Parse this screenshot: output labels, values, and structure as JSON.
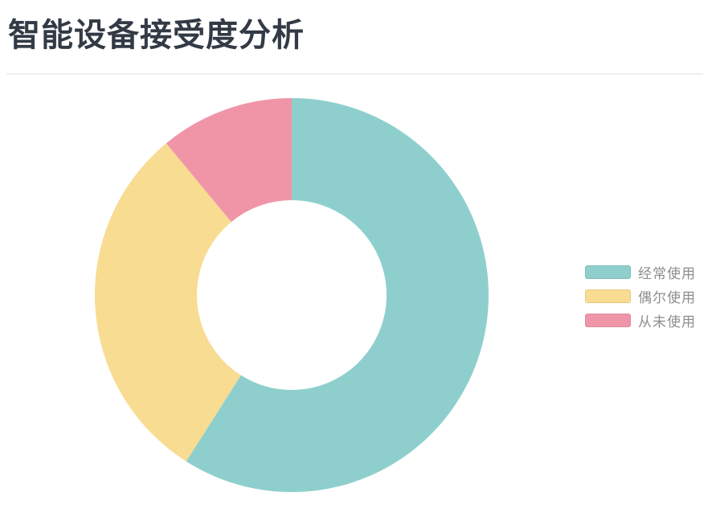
{
  "page": {
    "title": "智能设备接受度分析",
    "title_color": "#323a45",
    "background": "#ffffff",
    "divider_color": "#efefef"
  },
  "chart_data": {
    "type": "pie",
    "subtype": "donut",
    "title": "智能设备接受度分析",
    "unit": "percent",
    "direction": "clockwise",
    "start_angle_deg": 0,
    "inner_radius_ratio": 0.48,
    "legend_position": "right",
    "legend_text_color": "#8e8e8e",
    "series": [
      {
        "name": "经常使用",
        "value": 59,
        "color": "#8ecfcd"
      },
      {
        "name": "偶尔使用",
        "value": 30,
        "color": "#f8dc92"
      },
      {
        "name": "从未使用",
        "value": 11,
        "color": "#f095a8"
      }
    ]
  }
}
